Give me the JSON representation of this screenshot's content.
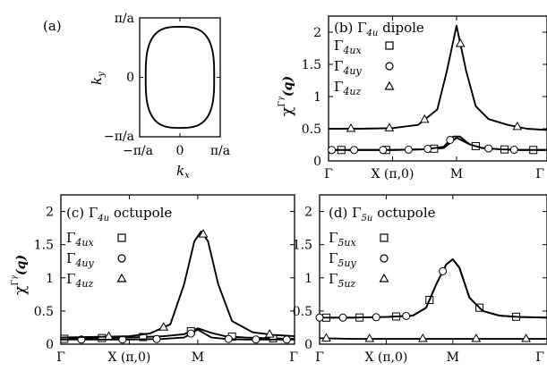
{
  "chart_data": [
    {
      "panel": "a",
      "type": "line",
      "label": "(a)",
      "xlabel": "k",
      "xlabel_sub": "x",
      "ylabel": "k",
      "ylabel_sub": "y",
      "xticks": [
        "−π/a",
        "0",
        "π/a"
      ],
      "yticks": [
        "π/a",
        "0",
        "−π/a"
      ],
      "xlim": [
        -1,
        1
      ],
      "ylim": [
        -1,
        1
      ],
      "curve": "closed Fermi surface contour, superellipse radius 0.85",
      "radius": 0.85
    },
    {
      "panel": "b",
      "type": "line",
      "label": "(b)",
      "title_prefix": "Γ",
      "title_sub": "4u",
      "title_suffix": " dipole",
      "ylabel": "χ",
      "ylabel_sup": "Γ",
      "ylabel_sup_sub": "γ",
      "ylabel_arg": "(q)",
      "ylim": [
        0,
        2.25
      ],
      "yticks": [
        "0",
        "0.5",
        "1",
        "1.5",
        "2"
      ],
      "xticks": [
        "Γ",
        "X (π,0)",
        "M",
        "Γ"
      ],
      "xpath_positions": [
        0,
        1,
        2,
        3.414
      ],
      "series": [
        {
          "name": "Γ4ux",
          "sym": "Γ",
          "sub": "4ux",
          "marker": "square",
          "x": [
            0,
            0.5,
            1,
            1.5,
            1.8,
            2,
            2.2,
            2.4,
            2.7,
            3.0,
            3.414
          ],
          "y": [
            0.17,
            0.17,
            0.17,
            0.18,
            0.2,
            0.36,
            0.26,
            0.2,
            0.18,
            0.17,
            0.17
          ],
          "markers_x": [
            0.2,
            0.9,
            1.65,
            2.3,
            2.75,
            3.2
          ]
        },
        {
          "name": "Γ4uy",
          "sym": "Γ",
          "sub": "4uy",
          "marker": "circle",
          "x": [
            0,
            0.5,
            1,
            1.5,
            1.8,
            1.95,
            2.05,
            2.2,
            2.4,
            2.7,
            3.0,
            3.414
          ],
          "y": [
            0.17,
            0.17,
            0.17,
            0.18,
            0.22,
            0.38,
            0.38,
            0.26,
            0.2,
            0.18,
            0.17,
            0.17
          ],
          "markers_x": [
            0.05,
            0.4,
            0.85,
            1.25,
            1.55,
            1.9,
            2.5,
            2.9
          ]
        },
        {
          "name": "Γ4uz",
          "sym": "Γ",
          "sub": "4uz",
          "marker": "triangle",
          "x": [
            0,
            0.5,
            1,
            1.4,
            1.7,
            1.85,
            2.0,
            2.15,
            2.3,
            2.5,
            2.8,
            3.1,
            3.414
          ],
          "y": [
            0.5,
            0.5,
            0.51,
            0.56,
            0.8,
            1.4,
            2.1,
            1.4,
            0.85,
            0.65,
            0.56,
            0.5,
            0.48
          ],
          "markers_x": [
            0.35,
            0.95,
            1.5,
            2.06,
            2.95
          ]
        }
      ]
    },
    {
      "panel": "c",
      "type": "line",
      "label": "(c)",
      "title_prefix": "Γ",
      "title_sub": "4u",
      "title_suffix": " octupole",
      "ylabel": "χ",
      "ylabel_sup": "Γ",
      "ylabel_sup_sub": "γ",
      "ylabel_arg": "(q)",
      "ylim": [
        0,
        2.25
      ],
      "yticks": [
        "0",
        "0.5",
        "1",
        "1.5",
        "2"
      ],
      "xticks": [
        "Γ",
        "X (π,0)",
        "M",
        "Γ"
      ],
      "xpath_positions": [
        0,
        1,
        2,
        3.414
      ],
      "series": [
        {
          "name": "Γ4ux",
          "sym": "Γ",
          "sub": "4ux",
          "marker": "square",
          "x": [
            0,
            0.5,
            1,
            1.5,
            1.8,
            2,
            2.2,
            2.4,
            2.7,
            3.0,
            3.414
          ],
          "y": [
            0.08,
            0.09,
            0.1,
            0.12,
            0.15,
            0.24,
            0.17,
            0.12,
            0.1,
            0.09,
            0.08
          ],
          "markers_x": [
            0.05,
            0.6,
            1.2,
            1.9,
            2.5,
            3.1
          ]
        },
        {
          "name": "Γ4uy",
          "sym": "Γ",
          "sub": "4uy",
          "marker": "circle",
          "x": [
            0,
            0.5,
            1,
            1.5,
            1.8,
            2,
            2.2,
            2.4,
            2.7,
            3.0,
            3.414
          ],
          "y": [
            0.07,
            0.07,
            0.07,
            0.08,
            0.1,
            0.22,
            0.1,
            0.08,
            0.07,
            0.07,
            0.07
          ],
          "markers_x": [
            0.3,
            0.9,
            1.4,
            1.9,
            2.45,
            2.85,
            3.3
          ]
        },
        {
          "name": "Γ4uz",
          "sym": "Γ",
          "sub": "4uz",
          "marker": "triangle",
          "x": [
            0,
            0.5,
            1,
            1.3,
            1.6,
            1.8,
            1.95,
            2.05,
            2.15,
            2.3,
            2.5,
            2.8,
            3.1,
            3.414
          ],
          "y": [
            0.1,
            0.11,
            0.12,
            0.16,
            0.3,
            0.9,
            1.55,
            1.7,
            1.55,
            0.9,
            0.35,
            0.18,
            0.14,
            0.12
          ],
          "markers_x": [
            0.7,
            1.5,
            2.08,
            3.05
          ]
        }
      ]
    },
    {
      "panel": "d",
      "type": "line",
      "label": "(d)",
      "title_prefix": "Γ",
      "title_sub": "5u",
      "title_suffix": " octupole",
      "ylim": [
        0,
        2.25
      ],
      "yticks": [
        "0",
        "0.5",
        "1",
        "1.5",
        "2"
      ],
      "xticks": [
        "Γ",
        "X (π,0)",
        "M",
        "Γ"
      ],
      "xpath_positions": [
        0,
        1,
        2,
        3.414
      ],
      "series": [
        {
          "name": "Γ5ux",
          "sym": "Γ",
          "sub": "5ux",
          "marker": "square",
          "x": [
            0,
            0.5,
            1,
            1.4,
            1.6,
            1.75,
            1.9,
            2.0,
            2.1,
            2.25,
            2.45,
            2.7,
            3.0,
            3.414
          ],
          "y": [
            0.4,
            0.4,
            0.41,
            0.43,
            0.55,
            0.9,
            1.2,
            1.28,
            1.15,
            0.7,
            0.5,
            0.43,
            0.41,
            0.4
          ],
          "markers_x": [
            0.1,
            0.6,
            1.15,
            1.65,
            2.4,
            2.95
          ]
        },
        {
          "name": "Γ5uy",
          "sym": "Γ",
          "sub": "5uy",
          "marker": "circle",
          "x": [
            0,
            0.5,
            1,
            1.4,
            1.6,
            1.75,
            1.9,
            2.0,
            2.1,
            2.25,
            2.45,
            2.7,
            3.0,
            3.414
          ],
          "y": [
            0.4,
            0.4,
            0.41,
            0.43,
            0.55,
            0.9,
            1.2,
            1.28,
            1.15,
            0.7,
            0.5,
            0.43,
            0.41,
            0.4
          ],
          "markers_x": [
            0.0,
            0.35,
            0.85,
            1.3,
            1.85
          ]
        },
        {
          "name": "Γ5uz",
          "sym": "Γ",
          "sub": "5uz",
          "marker": "triangle",
          "x": [
            0,
            0.5,
            1,
            1.5,
            2,
            2.5,
            3,
            3.414
          ],
          "y": [
            0.09,
            0.08,
            0.08,
            0.08,
            0.08,
            0.08,
            0.08,
            0.08
          ],
          "markers_x": [
            0.1,
            0.75,
            1.55,
            2.35,
            3.1
          ]
        }
      ]
    }
  ]
}
